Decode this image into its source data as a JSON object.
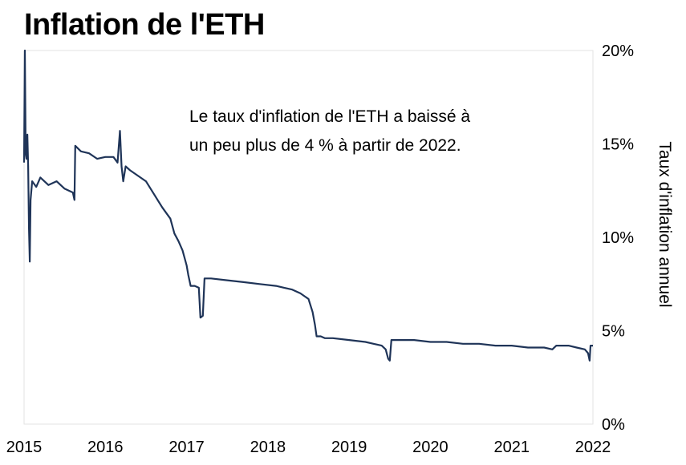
{
  "chart_data": {
    "type": "line",
    "title": "Inflation de l'ETH",
    "ylabel": "Taux d'inflation annuel",
    "xlabel": "",
    "x_ticks": [
      "2015",
      "2016",
      "2017",
      "2018",
      "2019",
      "2020",
      "2021",
      "2022"
    ],
    "y_ticks": [
      "0%",
      "5%",
      "10%",
      "15%",
      "20%"
    ],
    "xlim": [
      2015,
      2022
    ],
    "ylim": [
      0,
      20
    ],
    "grid": false,
    "axis_side": "right",
    "annotation": [
      "Le taux d'inflation de l'ETH a baissé à",
      "un peu plus de 4 % à partir de 2022."
    ],
    "line_color": "#1f3458",
    "series": [
      {
        "x": [
          2015.0,
          2015.01,
          2015.02,
          2015.03,
          2015.04,
          2015.05,
          2015.06,
          2015.07,
          2015.08,
          2015.1,
          2015.15,
          2015.2,
          2015.3,
          2015.4,
          2015.5,
          2015.6,
          2015.62,
          2015.63,
          2015.7,
          2015.8,
          2015.9,
          2016.0,
          2016.1,
          2016.15,
          2016.18,
          2016.2,
          2016.22,
          2016.25,
          2016.3,
          2016.4,
          2016.5,
          2016.6,
          2016.7,
          2016.8,
          2016.85,
          2016.9,
          2016.95,
          2017.0,
          2017.02,
          2017.05,
          2017.1,
          2017.15,
          2017.17,
          2017.2,
          2017.22,
          2017.25,
          2017.3,
          2017.5,
          2017.7,
          2017.9,
          2018.1,
          2018.2,
          2018.3,
          2018.4,
          2018.5,
          2018.55,
          2018.58,
          2018.6,
          2018.65,
          2018.7,
          2018.8,
          2019.0,
          2019.2,
          2019.3,
          2019.4,
          2019.45,
          2019.48,
          2019.5,
          2019.52,
          2019.6,
          2019.8,
          2020.0,
          2020.2,
          2020.4,
          2020.6,
          2020.8,
          2021.0,
          2021.2,
          2021.4,
          2021.5,
          2021.55,
          2021.6,
          2021.7,
          2021.8,
          2021.9,
          2021.94,
          2021.96,
          2021.97,
          2022.0
        ],
        "values": [
          14.0,
          20.0,
          14.5,
          14.2,
          15.5,
          13.8,
          10.5,
          8.7,
          12.0,
          13.0,
          12.7,
          13.2,
          12.8,
          13.0,
          12.6,
          12.4,
          12.0,
          14.9,
          14.6,
          14.5,
          14.2,
          14.3,
          14.3,
          14.0,
          15.7,
          13.8,
          13.0,
          13.8,
          13.6,
          13.3,
          13.0,
          12.3,
          11.6,
          11.0,
          10.2,
          9.8,
          9.3,
          8.5,
          8.0,
          7.4,
          7.4,
          7.3,
          5.7,
          5.8,
          7.8,
          7.8,
          7.8,
          7.7,
          7.6,
          7.5,
          7.4,
          7.3,
          7.2,
          7.0,
          6.7,
          6.0,
          5.3,
          4.7,
          4.7,
          4.6,
          4.6,
          4.5,
          4.4,
          4.3,
          4.2,
          4.0,
          3.5,
          3.4,
          4.5,
          4.5,
          4.5,
          4.4,
          4.4,
          4.3,
          4.3,
          4.2,
          4.2,
          4.1,
          4.1,
          4.0,
          4.2,
          4.2,
          4.2,
          4.1,
          4.0,
          3.8,
          3.4,
          4.2,
          4.2
        ]
      }
    ]
  }
}
